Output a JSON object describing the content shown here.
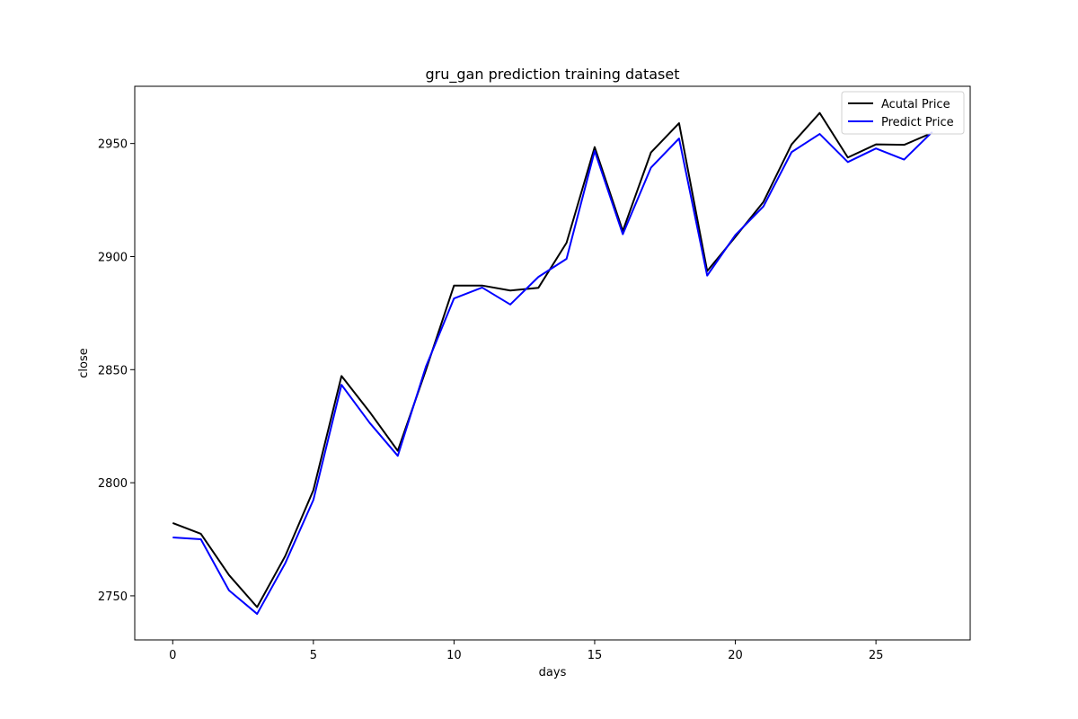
{
  "chart_data": {
    "type": "line",
    "title": "gru_gan prediction training dataset",
    "xlabel": "days",
    "ylabel": "close",
    "xlim": [
      -1.35,
      28.35
    ],
    "ylim": [
      2730.5,
      2975.3
    ],
    "xticks": [
      0,
      5,
      10,
      15,
      20,
      25
    ],
    "yticks": [
      2750,
      2800,
      2850,
      2900,
      2950
    ],
    "grid": false,
    "legend_position": "upper right",
    "x": [
      0,
      1,
      2,
      3,
      4,
      5,
      6,
      7,
      8,
      9,
      10,
      11,
      12,
      13,
      14,
      15,
      16,
      17,
      18,
      19,
      20,
      21,
      22,
      23,
      24,
      25,
      26,
      27
    ],
    "series": [
      {
        "name": "Acutal Price",
        "color": "#000000",
        "values": [
          2782.2,
          2777.4,
          2759.2,
          2745.0,
          2767.6,
          2796.7,
          2847.2,
          2831.3,
          2814.1,
          2849.8,
          2887.2,
          2887.2,
          2885.0,
          2886.2,
          2906.1,
          2948.4,
          2911.3,
          2946.0,
          2959.0,
          2893.6,
          2908.7,
          2924.2,
          2949.6,
          2963.5,
          2943.8,
          2949.6,
          2949.4,
          2954.7
        ]
      },
      {
        "name": "Predict Price",
        "color": "#0000ff",
        "values": [
          2775.8,
          2775.0,
          2752.4,
          2742.0,
          2764.4,
          2792.4,
          2843.3,
          2826.5,
          2811.9,
          2851.3,
          2881.5,
          2886.3,
          2878.8,
          2891.0,
          2899.0,
          2946.7,
          2909.9,
          2939.3,
          2952.2,
          2891.6,
          2909.5,
          2922.2,
          2946.2,
          2954.2,
          2941.8,
          2947.8,
          2942.9,
          2955.1
        ]
      }
    ]
  }
}
